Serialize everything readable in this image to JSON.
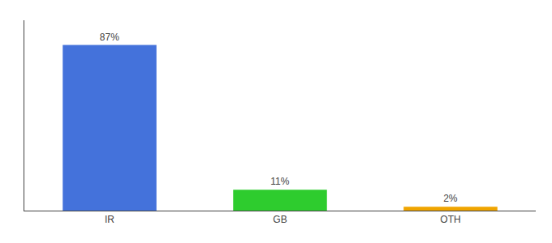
{
  "chart_data": {
    "type": "bar",
    "categories": [
      "IR",
      "GB",
      "OTH"
    ],
    "values": [
      87,
      11,
      2
    ],
    "value_labels": [
      "87%",
      "11%",
      "2%"
    ],
    "colors": [
      "#4472db",
      "#2ecc2e",
      "#f0a500"
    ],
    "data_labels": true,
    "ylim": [
      0,
      100
    ],
    "grid": false,
    "tick_labels": "x"
  }
}
